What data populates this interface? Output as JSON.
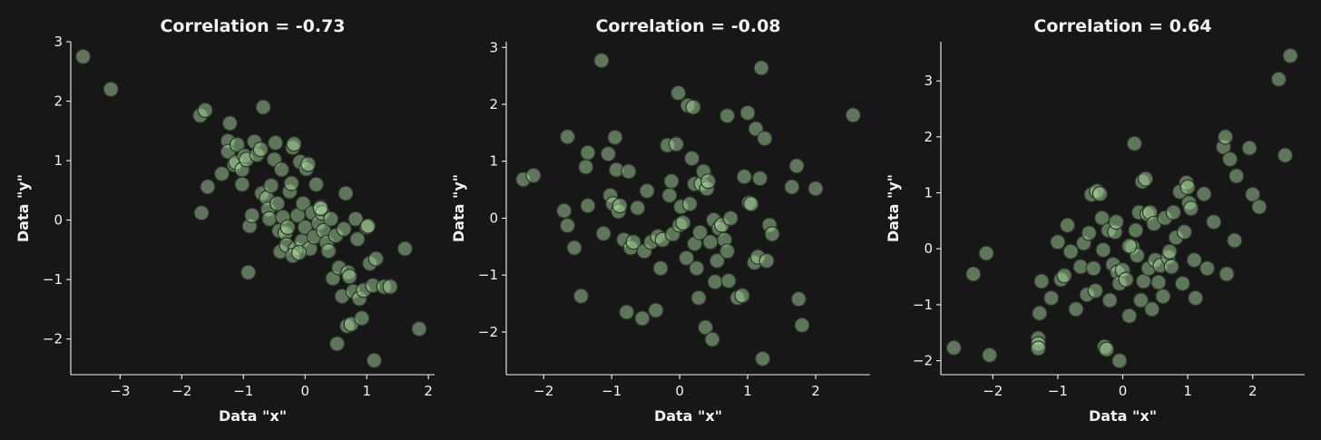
{
  "theme": {
    "background": "#171717",
    "text": "#f2f2f2",
    "point_fill": "#a6d69c",
    "point_opacity": 0.5,
    "point_edge": "#2a3427"
  },
  "chart_data": [
    {
      "type": "scatter",
      "title": "Correlation = -0.73",
      "xlabel": "Data \"x\"",
      "ylabel": "Data \"y\"",
      "xlim": [
        -3.8,
        2.1
      ],
      "ylim": [
        -2.6,
        3.0
      ],
      "xticks": [
        -3,
        -2,
        -1,
        0,
        1,
        2
      ],
      "yticks": [
        -2,
        -1,
        0,
        1,
        2,
        3
      ],
      "grid": false,
      "points": [
        [
          -3.6,
          2.75
        ],
        [
          -3.15,
          2.2
        ],
        [
          -1.7,
          1.76
        ],
        [
          -1.62,
          1.85
        ],
        [
          -1.68,
          0.12
        ],
        [
          -1.58,
          0.56
        ],
        [
          -1.35,
          0.78
        ],
        [
          -1.25,
          1.33
        ],
        [
          -1.22,
          1.63
        ],
        [
          -1.25,
          1.15
        ],
        [
          -1.15,
          0.93
        ],
        [
          -1.12,
          0.97
        ],
        [
          -1.1,
          1.27
        ],
        [
          -1.02,
          0.85
        ],
        [
          -1.02,
          0.6
        ],
        [
          -0.98,
          1.08
        ],
        [
          -0.95,
          1.02
        ],
        [
          -0.92,
          -0.88
        ],
        [
          -0.9,
          -0.1
        ],
        [
          -0.86,
          0.08
        ],
        [
          -0.82,
          1.32
        ],
        [
          -0.78,
          1.1
        ],
        [
          -0.72,
          1.19
        ],
        [
          -0.7,
          0.45
        ],
        [
          -0.68,
          1.9
        ],
        [
          -0.62,
          0.37
        ],
        [
          -0.6,
          0.18
        ],
        [
          -0.58,
          0.02
        ],
        [
          -0.55,
          0.58
        ],
        [
          -0.5,
          1.02
        ],
        [
          -0.48,
          1.3
        ],
        [
          -0.45,
          0.28
        ],
        [
          -0.42,
          -0.18
        ],
        [
          -0.4,
          -0.53
        ],
        [
          -0.38,
          0.85
        ],
        [
          -0.36,
          0.05
        ],
        [
          -0.32,
          -0.22
        ],
        [
          -0.3,
          -0.42
        ],
        [
          -0.28,
          -0.12
        ],
        [
          -0.25,
          0.48
        ],
        [
          -0.22,
          0.62
        ],
        [
          -0.2,
          1.22
        ],
        [
          -0.18,
          1.28
        ],
        [
          -0.15,
          -0.48
        ],
        [
          -0.12,
          0.08
        ],
        [
          -0.08,
          0.98
        ],
        [
          -0.05,
          -0.35
        ],
        [
          -0.03,
          0.28
        ],
        [
          0.0,
          -0.12
        ],
        [
          0.02,
          0.86
        ],
        [
          0.05,
          0.94
        ],
        [
          0.08,
          -0.48
        ],
        [
          0.12,
          0.12
        ],
        [
          0.15,
          -0.28
        ],
        [
          0.18,
          0.6
        ],
        [
          0.22,
          -0.05
        ],
        [
          0.25,
          0.22
        ],
        [
          0.28,
          0.12
        ],
        [
          0.3,
          -0.18
        ],
        [
          0.35,
          -0.38
        ],
        [
          0.38,
          -0.52
        ],
        [
          0.42,
          0.02
        ],
        [
          0.45,
          -0.98
        ],
        [
          0.5,
          -0.26
        ],
        [
          0.52,
          -2.08
        ],
        [
          0.55,
          -0.8
        ],
        [
          0.6,
          -1.28
        ],
        [
          0.63,
          -0.15
        ],
        [
          0.66,
          0.45
        ],
        [
          0.68,
          -1.78
        ],
        [
          0.7,
          -0.88
        ],
        [
          0.72,
          -0.95
        ],
        [
          0.75,
          -1.75
        ],
        [
          0.78,
          -1.2
        ],
        [
          0.82,
          0.02
        ],
        [
          0.85,
          -0.32
        ],
        [
          0.88,
          -1.32
        ],
        [
          0.92,
          -1.65
        ],
        [
          0.95,
          -1.18
        ],
        [
          1.0,
          -0.12
        ],
        [
          1.02,
          -0.1
        ],
        [
          1.05,
          -0.73
        ],
        [
          1.1,
          -1.1
        ],
        [
          1.12,
          -2.36
        ],
        [
          1.15,
          -0.65
        ],
        [
          1.28,
          -1.12
        ],
        [
          1.38,
          -1.12
        ],
        [
          1.62,
          -0.48
        ],
        [
          1.85,
          -1.83
        ],
        [
          -0.2,
          -0.6
        ],
        [
          -0.1,
          -0.55
        ],
        [
          0.25,
          0.2
        ]
      ]
    },
    {
      "type": "scatter",
      "title": "Correlation = -0.08",
      "xlabel": "Data \"x\"",
      "ylabel": "Data \"y\"",
      "xlim": [
        -2.55,
        2.8
      ],
      "ylim": [
        -2.75,
        3.1
      ],
      "xticks": [
        -2,
        -1,
        0,
        1,
        2
      ],
      "yticks": [
        -2,
        -1,
        0,
        1,
        2,
        3
      ],
      "grid": false,
      "points": [
        [
          -2.3,
          0.68
        ],
        [
          -2.15,
          0.75
        ],
        [
          -1.65,
          1.43
        ],
        [
          -1.7,
          0.13
        ],
        [
          -1.65,
          -0.13
        ],
        [
          -1.55,
          -0.52
        ],
        [
          -1.45,
          -1.37
        ],
        [
          -1.35,
          1.15
        ],
        [
          -1.38,
          0.9
        ],
        [
          -1.35,
          0.22
        ],
        [
          -1.15,
          2.77
        ],
        [
          -1.12,
          -0.27
        ],
        [
          -1.05,
          1.13
        ],
        [
          -1.02,
          0.4
        ],
        [
          -0.98,
          0.25
        ],
        [
          -0.95,
          1.42
        ],
        [
          -0.93,
          0.85
        ],
        [
          -0.9,
          0.12
        ],
        [
          -0.88,
          0.22
        ],
        [
          -0.82,
          -0.38
        ],
        [
          -0.78,
          -1.65
        ],
        [
          -0.75,
          0.82
        ],
        [
          -0.72,
          -0.52
        ],
        [
          -0.68,
          -0.42
        ],
        [
          -0.62,
          0.18
        ],
        [
          -0.55,
          -1.76
        ],
        [
          -0.52,
          -0.58
        ],
        [
          -0.48,
          0.48
        ],
        [
          -0.42,
          -0.42
        ],
        [
          -0.35,
          -1.62
        ],
        [
          -0.32,
          -0.32
        ],
        [
          -0.28,
          -0.88
        ],
        [
          -0.25,
          -0.38
        ],
        [
          -0.18,
          1.28
        ],
        [
          -0.15,
          0.4
        ],
        [
          -0.12,
          0.65
        ],
        [
          -0.1,
          -0.28
        ],
        [
          -0.05,
          1.3
        ],
        [
          -0.02,
          2.2
        ],
        [
          0.0,
          -0.12
        ],
        [
          0.02,
          0.2
        ],
        [
          0.05,
          -0.08
        ],
        [
          0.1,
          -0.7
        ],
        [
          0.12,
          1.98
        ],
        [
          0.15,
          0.25
        ],
        [
          0.18,
          1.05
        ],
        [
          0.2,
          1.95
        ],
        [
          0.22,
          -0.45
        ],
        [
          0.22,
          0.6
        ],
        [
          0.25,
          -0.88
        ],
        [
          0.28,
          -1.4
        ],
        [
          0.3,
          -0.25
        ],
        [
          0.32,
          0.6
        ],
        [
          0.35,
          0.82
        ],
        [
          0.38,
          -1.92
        ],
        [
          0.4,
          0.52
        ],
        [
          0.42,
          0.65
        ],
        [
          0.45,
          -0.42
        ],
        [
          0.48,
          -2.13
        ],
        [
          0.5,
          -0.03
        ],
        [
          0.52,
          -1.12
        ],
        [
          0.55,
          -0.75
        ],
        [
          0.58,
          -0.18
        ],
        [
          0.62,
          -0.12
        ],
        [
          0.66,
          -0.38
        ],
        [
          0.7,
          1.8
        ],
        [
          0.7,
          -0.58
        ],
        [
          0.72,
          -1.1
        ],
        [
          0.75,
          0.0
        ],
        [
          0.85,
          -1.4
        ],
        [
          0.92,
          -1.36
        ],
        [
          0.95,
          0.73
        ],
        [
          1.0,
          1.85
        ],
        [
          1.02,
          0.27
        ],
        [
          1.05,
          0.25
        ],
        [
          1.1,
          -0.78
        ],
        [
          1.12,
          1.57
        ],
        [
          1.15,
          -0.68
        ],
        [
          1.18,
          0.7
        ],
        [
          1.2,
          2.64
        ],
        [
          1.22,
          -2.47
        ],
        [
          1.25,
          1.4
        ],
        [
          1.28,
          -0.75
        ],
        [
          1.32,
          -0.12
        ],
        [
          1.36,
          -0.28
        ],
        [
          1.65,
          0.55
        ],
        [
          1.72,
          0.92
        ],
        [
          1.75,
          -1.42
        ],
        [
          1.8,
          -1.88
        ],
        [
          2.0,
          0.52
        ],
        [
          2.55,
          1.81
        ]
      ]
    },
    {
      "type": "scatter",
      "title": "Correlation = 0.64",
      "xlabel": "Data \"x\"",
      "ylabel": "Data \"y\"",
      "xlim": [
        -2.8,
        2.8
      ],
      "ylim": [
        -2.25,
        3.7
      ],
      "xticks": [
        -2,
        -1,
        0,
        1,
        2
      ],
      "yticks": [
        -2,
        -1,
        0,
        1,
        2,
        3
      ],
      "grid": false,
      "points": [
        [
          -2.6,
          -1.77
        ],
        [
          -2.3,
          -0.45
        ],
        [
          -2.1,
          -0.08
        ],
        [
          -2.05,
          -1.9
        ],
        [
          -1.3,
          -1.6
        ],
        [
          -1.3,
          -1.7
        ],
        [
          -1.3,
          -1.78
        ],
        [
          -1.28,
          -1.15
        ],
        [
          -1.25,
          -0.58
        ],
        [
          -1.1,
          -0.88
        ],
        [
          -1.0,
          0.12
        ],
        [
          -0.95,
          -0.55
        ],
        [
          -0.9,
          -0.48
        ],
        [
          -0.85,
          0.42
        ],
        [
          -0.8,
          -0.05
        ],
        [
          -0.72,
          -1.08
        ],
        [
          -0.65,
          -0.32
        ],
        [
          -0.6,
          0.1
        ],
        [
          -0.55,
          -0.82
        ],
        [
          -0.52,
          0.28
        ],
        [
          -0.48,
          0.97
        ],
        [
          -0.45,
          -0.35
        ],
        [
          -0.42,
          -0.75
        ],
        [
          -0.4,
          1.03
        ],
        [
          -0.35,
          0.98
        ],
        [
          -0.32,
          0.55
        ],
        [
          -0.3,
          -0.02
        ],
        [
          -0.28,
          -1.75
        ],
        [
          -0.25,
          -1.8
        ],
        [
          -0.22,
          0.33
        ],
        [
          -0.2,
          -0.92
        ],
        [
          -0.15,
          -0.28
        ],
        [
          -0.12,
          0.3
        ],
        [
          -0.1,
          0.48
        ],
        [
          -0.08,
          -0.42
        ],
        [
          -0.05,
          -0.62
        ],
        [
          -0.05,
          -2.0
        ],
        [
          0.0,
          -0.38
        ],
        [
          0.05,
          -0.55
        ],
        [
          0.1,
          -1.2
        ],
        [
          0.15,
          0.03
        ],
        [
          0.18,
          1.88
        ],
        [
          0.2,
          0.33
        ],
        [
          0.22,
          -0.12
        ],
        [
          0.25,
          0.65
        ],
        [
          0.28,
          -0.92
        ],
        [
          0.3,
          1.2
        ],
        [
          0.32,
          -0.58
        ],
        [
          0.35,
          1.25
        ],
        [
          0.38,
          0.62
        ],
        [
          0.4,
          -0.35
        ],
        [
          0.42,
          0.65
        ],
        [
          0.45,
          -1.08
        ],
        [
          0.48,
          0.45
        ],
        [
          0.5,
          -0.2
        ],
        [
          0.55,
          -0.6
        ],
        [
          0.58,
          -0.3
        ],
        [
          0.62,
          -0.85
        ],
        [
          0.65,
          0.55
        ],
        [
          0.7,
          -0.15
        ],
        [
          0.72,
          -0.05
        ],
        [
          0.75,
          -0.32
        ],
        [
          0.78,
          0.65
        ],
        [
          0.82,
          0.2
        ],
        [
          0.88,
          1.02
        ],
        [
          0.92,
          -0.62
        ],
        [
          0.95,
          0.3
        ],
        [
          0.98,
          1.18
        ],
        [
          1.0,
          1.1
        ],
        [
          1.02,
          0.82
        ],
        [
          1.05,
          0.72
        ],
        [
          1.1,
          -0.2
        ],
        [
          1.12,
          -0.88
        ],
        [
          1.25,
          0.98
        ],
        [
          1.3,
          -0.35
        ],
        [
          1.4,
          0.48
        ],
        [
          1.55,
          1.82
        ],
        [
          1.58,
          2.0
        ],
        [
          1.6,
          -0.45
        ],
        [
          1.65,
          1.6
        ],
        [
          1.72,
          0.15
        ],
        [
          1.75,
          1.3
        ],
        [
          1.95,
          1.8
        ],
        [
          2.0,
          0.97
        ],
        [
          2.1,
          0.75
        ],
        [
          2.4,
          3.03
        ],
        [
          2.5,
          1.67
        ],
        [
          2.58,
          3.45
        ],
        [
          0.1,
          0.05
        ]
      ]
    }
  ]
}
